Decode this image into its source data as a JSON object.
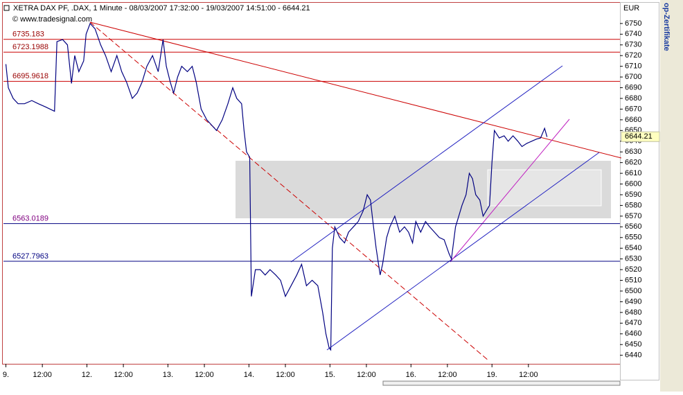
{
  "chart_data": {
    "type": "line",
    "title": "XETRA DAX PF, .DAX, 1 Minute - 08/03/2007 17:32:00 - 19/03/2007 14:51:00 - 6644.21",
    "copyright": "© www.tradesignal.com",
    "y_unit": "EUR",
    "side_text": "op-Zertifikate",
    "last_value": 6644.21,
    "xlim": [
      -0.03,
      7.58
    ],
    "ylim": [
      6432,
      6770
    ],
    "xticks": [
      {
        "value": 0,
        "label": "9."
      },
      {
        "value": 0.45,
        "label": "12:00"
      },
      {
        "value": 1,
        "label": "12."
      },
      {
        "value": 1.45,
        "label": "12:00"
      },
      {
        "value": 2,
        "label": "13."
      },
      {
        "value": 2.45,
        "label": "12:00"
      },
      {
        "value": 3,
        "label": "14."
      },
      {
        "value": 3.45,
        "label": "12:00"
      },
      {
        "value": 4,
        "label": "15."
      },
      {
        "value": 4.45,
        "label": "12:00"
      },
      {
        "value": 5,
        "label": "16."
      },
      {
        "value": 5.45,
        "label": "12:00"
      },
      {
        "value": 6,
        "label": "19."
      },
      {
        "value": 6.45,
        "label": "12:00"
      }
    ],
    "yticks": [
      6440,
      6450,
      6460,
      6470,
      6480,
      6490,
      6500,
      6510,
      6520,
      6530,
      6540,
      6550,
      6560,
      6570,
      6580,
      6590,
      6600,
      6610,
      6620,
      6630,
      6640,
      6650,
      6660,
      6670,
      6680,
      6690,
      6700,
      6710,
      6720,
      6730,
      6740,
      6750
    ],
    "levels": [
      {
        "value": 6735.183,
        "color": "#cc0000",
        "label_color": "#990000"
      },
      {
        "value": 6723.1988,
        "color": "#cc0000",
        "label_color": "#990000"
      },
      {
        "value": 6695.9618,
        "color": "#cc0000",
        "label_color": "#990000"
      },
      {
        "value": 6563.0189,
        "color": "#000080",
        "label_color": "#800080"
      },
      {
        "value": 6527.7963,
        "color": "#000080",
        "label_color": "#000080"
      }
    ],
    "x": [
      0,
      0.03,
      0.09,
      0.15,
      0.23,
      0.32,
      0.4,
      0.49,
      0.6,
      0.63,
      0.7,
      0.76,
      0.81,
      0.85,
      0.9,
      0.96,
      0.99,
      1.04,
      1.1,
      1.17,
      1.23,
      1.3,
      1.37,
      1.43,
      1.49,
      1.56,
      1.62,
      1.68,
      1.74,
      1.81,
      1.88,
      1.94,
      1.98,
      2.03,
      2.07,
      2.12,
      2.17,
      2.24,
      2.3,
      2.35,
      2.41,
      2.48,
      2.54,
      2.6,
      2.67,
      2.74,
      2.8,
      2.85,
      2.91,
      2.94,
      2.97,
      3.01,
      3.03,
      3.08,
      3.14,
      3.2,
      3.26,
      3.33,
      3.39,
      3.45,
      3.52,
      3.59,
      3.65,
      3.71,
      3.78,
      3.85,
      3.91,
      3.95,
      3.99,
      4.01,
      4.03,
      4.06,
      4.12,
      4.18,
      4.23,
      4.29,
      4.35,
      4.41,
      4.46,
      4.5,
      4.53,
      4.57,
      4.62,
      4.65,
      4.7,
      4.74,
      4.8,
      4.86,
      4.92,
      4.97,
      5.02,
      5.06,
      5.12,
      5.18,
      5.23,
      5.29,
      5.35,
      5.41,
      5.47,
      5.5,
      5.55,
      5.59,
      5.63,
      5.68,
      5.72,
      5.76,
      5.8,
      5.85,
      5.89,
      5.93,
      5.97,
      6.0,
      6.03,
      6.09,
      6.15,
      6.2,
      6.26,
      6.32,
      6.37,
      6.43,
      6.49,
      6.55,
      6.6,
      6.65,
      6.68
    ],
    "series": [
      {
        "color": "#000080",
        "values": [
          6712,
          6690,
          6680,
          6675,
          6675,
          6678,
          6675,
          6672,
          6668,
          6733,
          6735,
          6730,
          6694,
          6720,
          6705,
          6715,
          6740,
          6750,
          6745,
          6730,
          6720,
          6705,
          6720,
          6705,
          6695,
          6680,
          6685,
          6695,
          6710,
          6720,
          6705,
          6735,
          6710,
          6695,
          6685,
          6700,
          6710,
          6705,
          6710,
          6695,
          6670,
          6660,
          6655,
          6650,
          6660,
          6675,
          6690,
          6680,
          6675,
          6650,
          6630,
          6625,
          6495,
          6520,
          6520,
          6515,
          6520,
          6515,
          6510,
          6495,
          6505,
          6515,
          6525,
          6505,
          6510,
          6505,
          6480,
          6460,
          6447,
          6445,
          6540,
          6560,
          6550,
          6545,
          6555,
          6560,
          6565,
          6575,
          6590,
          6585,
          6565,
          6540,
          6515,
          6525,
          6550,
          6560,
          6570,
          6555,
          6560,
          6555,
          6545,
          6565,
          6555,
          6565,
          6560,
          6555,
          6550,
          6548,
          6535,
          6530,
          6560,
          6570,
          6580,
          6590,
          6610,
          6605,
          6590,
          6585,
          6570,
          6575,
          6580,
          6620,
          6650,
          6643,
          6645,
          6640,
          6645,
          6640,
          6635,
          6638,
          6640,
          6642,
          6643,
          6652,
          6644
        ]
      }
    ]
  }
}
